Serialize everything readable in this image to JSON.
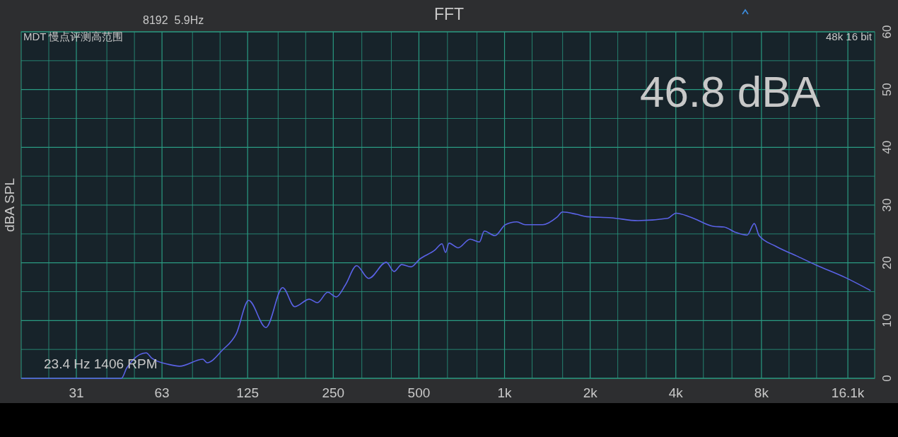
{
  "chart_data": {
    "type": "line",
    "title": "FFT",
    "ylabel": "dBA SPL",
    "log": "x",
    "grid": true,
    "marker": "none",
    "line_style": "solid",
    "xlim": [
      20,
      20000
    ],
    "xticks": [
      {
        "value": 25,
        "label": null
      },
      {
        "value": 31.25,
        "label": "31"
      },
      {
        "value": 40,
        "label": null
      },
      {
        "value": 50,
        "label": null
      },
      {
        "value": 62.5,
        "label": "63"
      },
      {
        "value": 80,
        "label": null
      },
      {
        "value": 100,
        "label": null
      },
      125,
      {
        "value": 160,
        "label": null
      },
      {
        "value": 200,
        "label": null
      },
      250,
      {
        "value": 315,
        "label": null
      },
      {
        "value": 400,
        "label": null
      },
      500,
      {
        "value": 630,
        "label": null
      },
      {
        "value": 800,
        "label": null
      },
      {
        "value": 1000,
        "label": "1k"
      },
      {
        "value": 1250,
        "label": null
      },
      {
        "value": 1600,
        "label": null
      },
      {
        "value": 2000,
        "label": "2k"
      },
      {
        "value": 2500,
        "label": null
      },
      {
        "value": 3150,
        "label": null
      },
      {
        "value": 4000,
        "label": "4k"
      },
      {
        "value": 5000,
        "label": null
      },
      {
        "value": 6300,
        "label": null
      },
      {
        "value": 8000,
        "label": "8k"
      },
      {
        "value": 10000,
        "label": null
      },
      {
        "value": 12500,
        "label": null
      },
      {
        "value": 16100,
        "label": "16.1k"
      }
    ],
    "ylim": [
      0,
      60
    ],
    "yticks": [
      0,
      {
        "value": 5,
        "label": null
      },
      10,
      {
        "value": 15,
        "label": null
      },
      20,
      {
        "value": 25,
        "label": null
      },
      30,
      {
        "value": 35,
        "label": null
      },
      40,
      {
        "value": 45,
        "label": null
      },
      50,
      {
        "value": 55,
        "label": null
      },
      60
    ],
    "series": [
      {
        "color": "#5a62e6",
        "x": [
          20,
          45,
          47,
          55,
          57.5,
          66,
          72,
          87,
          90,
          102,
          114,
          126,
          145,
          166,
          183,
          206,
          220,
          239,
          256,
          276,
          302,
          333,
          384,
          409,
          435,
          469,
          502,
          569,
          603,
          620,
          638,
          687,
          757,
          816,
          849,
          925,
          1007,
          1104,
          1182,
          1363,
          1528,
          1599,
          1792,
          1942,
          2370,
          2945,
          3740,
          4006,
          4516,
          5452,
          5906,
          6468,
          7126,
          7548,
          7852,
          8958,
          10624,
          12470,
          15846,
          19346
        ],
        "values": [
          0,
          0,
          1.8,
          4.4,
          3.5,
          2.4,
          2.1,
          3.3,
          2.7,
          4.9,
          7.7,
          13.5,
          8.8,
          15.7,
          12.4,
          13.7,
          13.1,
          14.9,
          14.1,
          16.2,
          19.5,
          17.3,
          20.1,
          18.5,
          19.7,
          19.3,
          20.6,
          22.2,
          23.3,
          21.8,
          23.4,
          22.6,
          24.1,
          23.6,
          25.5,
          24.7,
          26.6,
          27.1,
          26.6,
          26.6,
          27.9,
          28.8,
          28.4,
          28,
          27.8,
          27.3,
          27.7,
          28.6,
          27.9,
          26.3,
          26.2,
          25.3,
          24.8,
          26.8,
          24.7,
          22.9,
          21.2,
          19.6,
          17.4,
          15.2
        ]
      }
    ],
    "annotations": [
      "8192  5.9Hz",
      "MDT 慢点评测高范围",
      "48k 16 bit",
      "46.8 dBA",
      "23.4 Hz 1406 RPM"
    ]
  }
}
